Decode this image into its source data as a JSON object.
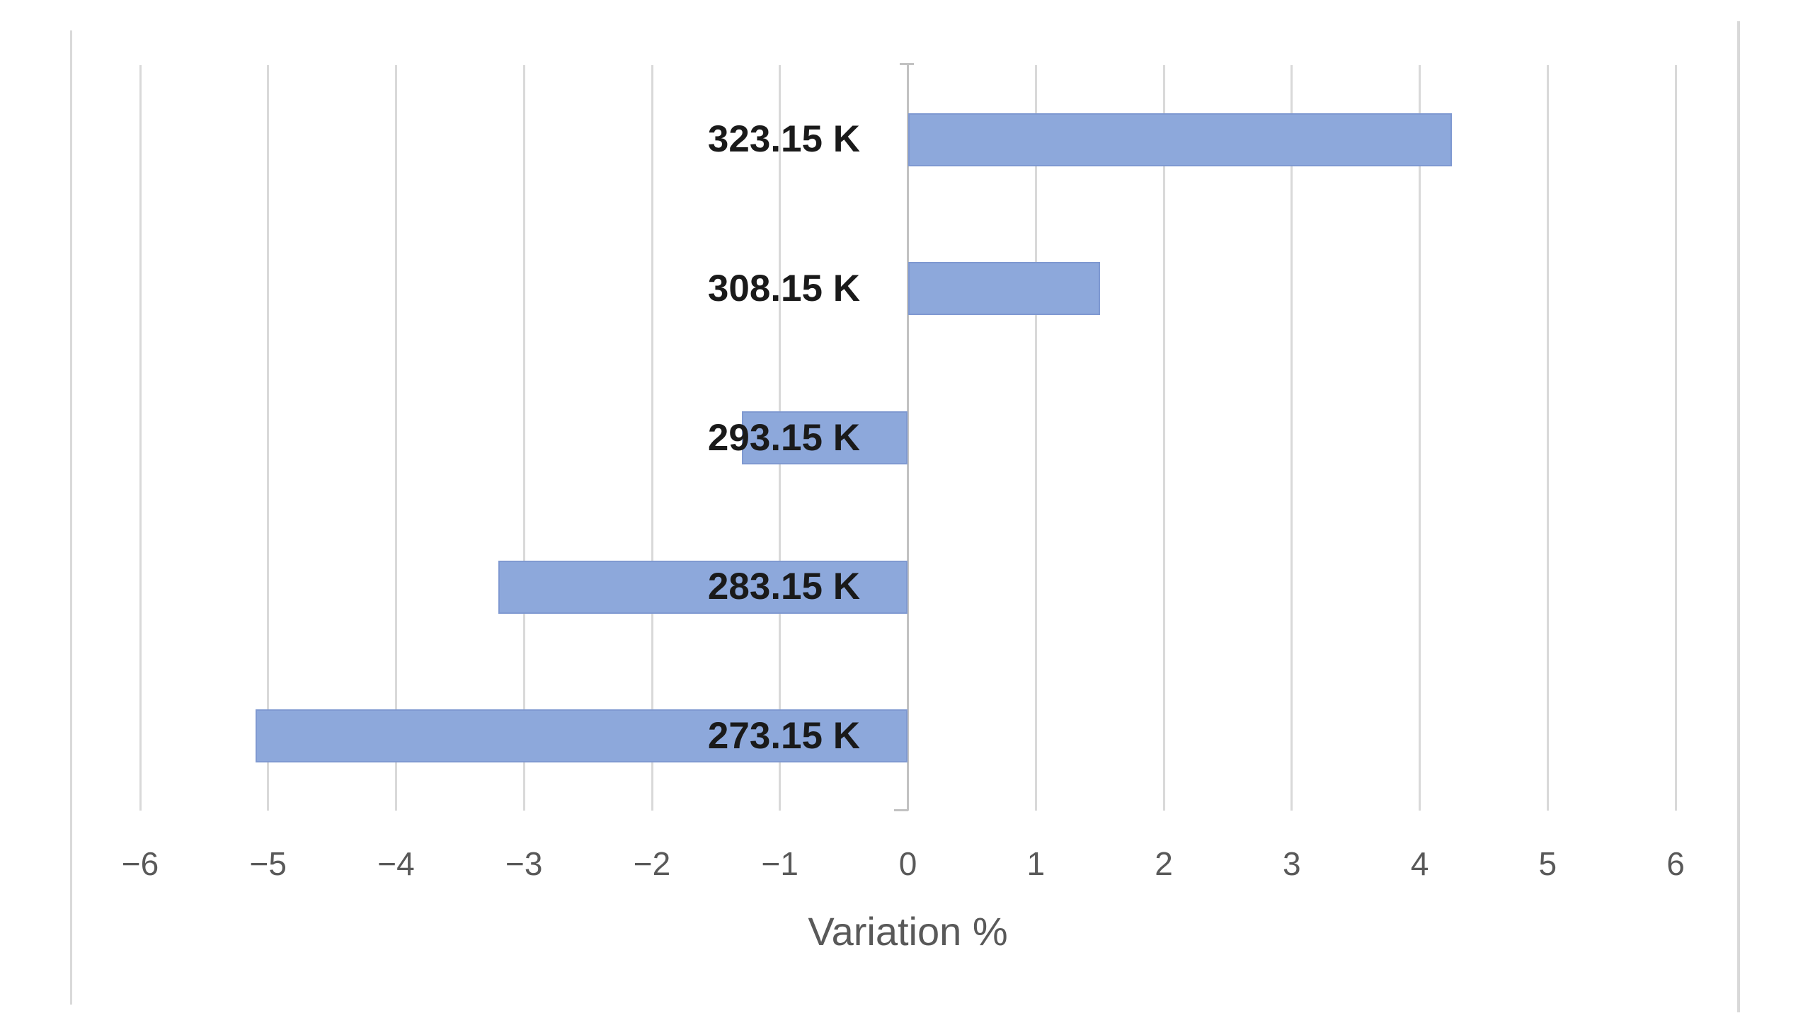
{
  "chart_data": {
    "type": "bar",
    "orientation": "horizontal",
    "title": "",
    "xlabel": "Variation %",
    "ylabel": "",
    "categories": [
      "323.15 K",
      "308.15 K",
      "293.15 K",
      "283.15 K",
      "273.15 K"
    ],
    "values": [
      4.25,
      1.5,
      -1.3,
      -3.2,
      -5.1
    ],
    "xlim": [
      -6,
      6
    ],
    "xtick_values": [
      -6,
      -5,
      -4,
      -3,
      -2,
      -1,
      0,
      1,
      2,
      3,
      4,
      5,
      6
    ],
    "xtick_labels": [
      "−6",
      "−5",
      "−4",
      "−3",
      "−2",
      "−1",
      "0",
      "1",
      "2",
      "3",
      "4",
      "5",
      "6"
    ],
    "grid": "vertical-gridlines",
    "legend": "none",
    "colors": {
      "bar_fill": "#8DA8DB",
      "bar_border": "#7F99D1",
      "gridline": "#D9D9D9",
      "zero_line": "#C2C2C2",
      "tick_label": "#595959",
      "axis_title": "#595959",
      "category_label": "#1A1A1A",
      "chart_border": "#D9D9D9",
      "background": "#FFFFFF"
    }
  }
}
